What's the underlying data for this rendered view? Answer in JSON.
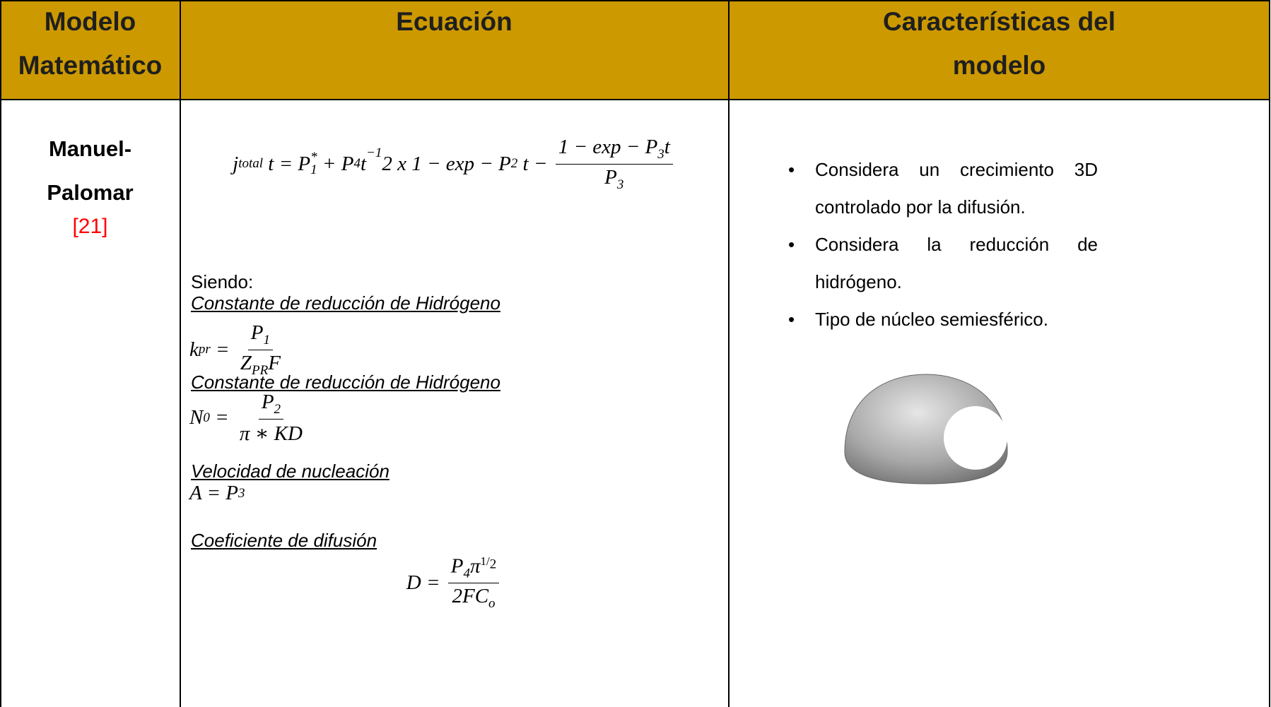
{
  "header": {
    "columns": [
      [
        "Modelo",
        "Matemático"
      ],
      [
        "Ecuación"
      ],
      [
        "Características del",
        "modelo"
      ]
    ]
  },
  "row": {
    "model_name": [
      "Manuel-",
      "Palomar"
    ],
    "reference": "[21]",
    "main_equation": [
      "j",
      "total",
      " t = P",
      "1",
      "*",
      " + P",
      "4",
      "t",
      "−1",
      "2 x 1 − exp − P",
      "2",
      " t − ",
      "1 − exp − P",
      "3",
      "t",
      "P",
      "3"
    ],
    "intro": "Siendo:",
    "definitions": [
      {
        "label": "Constante de reducción de Hidrógeno",
        "formula": [
          "k",
          "pr",
          " = ",
          "P",
          "1",
          "Z",
          "PR",
          "F"
        ]
      },
      {
        "label": "Constante de reducción de Hidrógeno",
        "formula": [
          "N",
          "0",
          " = ",
          "P",
          "2",
          "π ∗ KD"
        ]
      },
      {
        "label": "Velocidad de nucleación",
        "formula": [
          "A = P",
          "3"
        ]
      },
      {
        "label": "Coeficiente de difusión",
        "formula": [
          "D = ",
          "P",
          "4",
          "π",
          "1",
          "2",
          "2F",
          "C",
          "o"
        ]
      }
    ],
    "features": [
      "Considera un crecimiento 3D controlado por la difusión.",
      "Considera la reducción de hidrógeno.",
      "Tipo de núcleo semiesférico."
    ]
  }
}
